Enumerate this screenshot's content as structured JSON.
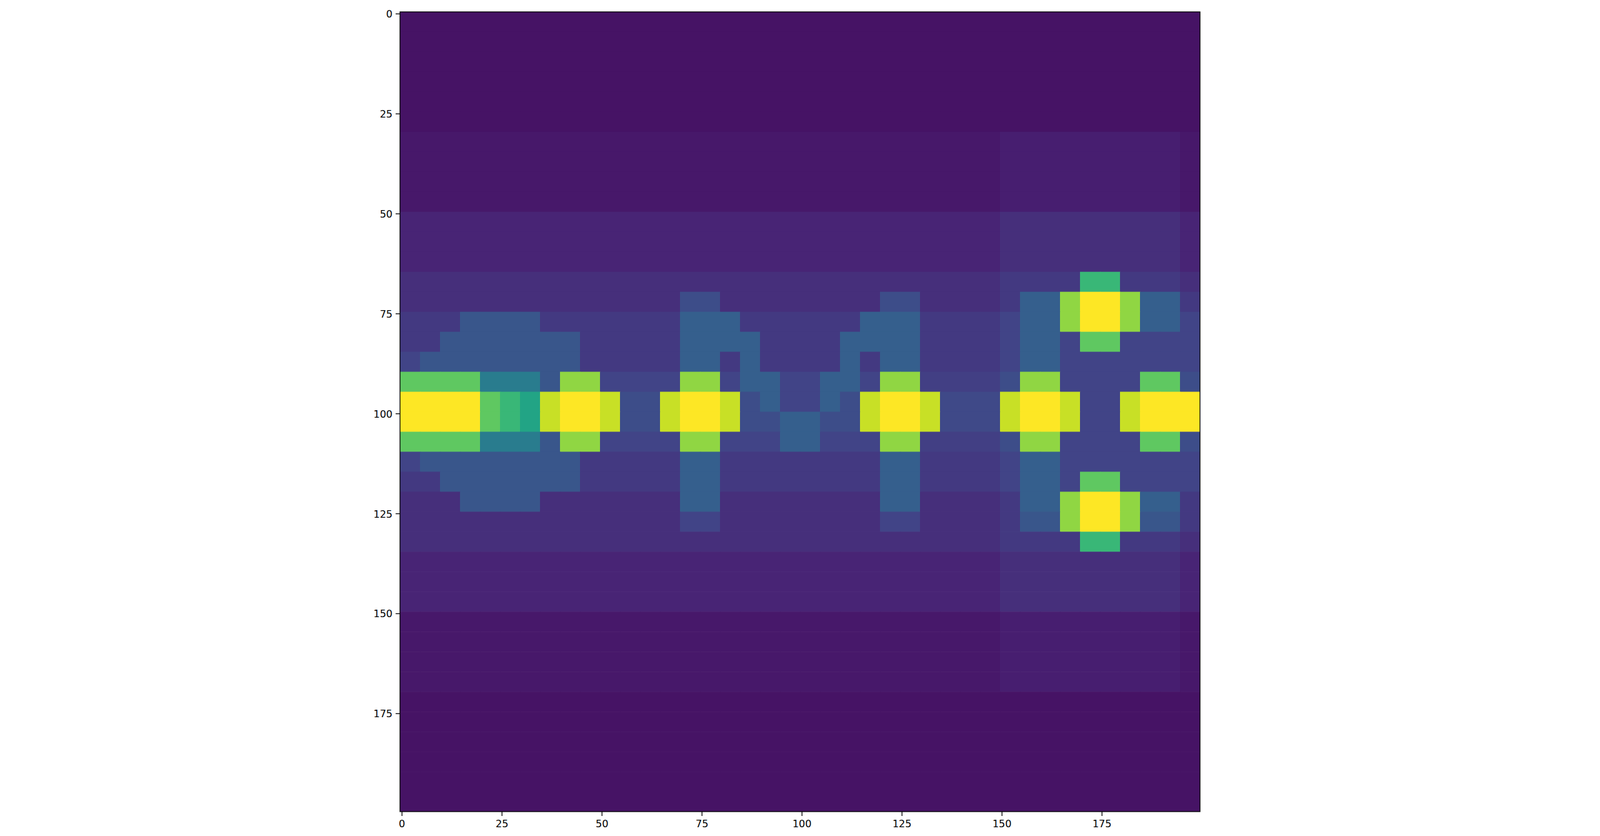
{
  "chart_data": {
    "type": "heatmap",
    "color": "viridis",
    "xlim": [
      -0.5,
      199.5
    ],
    "ylim": [
      199.5,
      -0.5
    ],
    "xticks": [
      0,
      25,
      50,
      75,
      100,
      125,
      150,
      175
    ],
    "yticks": [
      0,
      25,
      50,
      75,
      100,
      125,
      150,
      175
    ],
    "clim": [
      0,
      60
    ],
    "cells": [
      [
        3,
        3,
        3,
        3,
        3,
        3,
        3,
        3,
        3,
        3,
        3,
        3,
        3,
        3,
        3,
        3,
        3,
        3,
        3,
        3,
        3,
        3,
        3,
        3,
        3,
        3,
        3,
        3,
        3,
        3,
        3,
        3,
        3,
        3,
        3,
        3,
        3,
        3,
        3,
        3
      ],
      [
        3,
        3,
        3,
        3,
        3,
        3,
        3,
        3,
        3,
        3,
        3,
        3,
        3,
        3,
        3,
        3,
        3,
        3,
        3,
        3,
        3,
        3,
        3,
        3,
        3,
        3,
        3,
        3,
        3,
        3,
        3,
        3,
        3,
        3,
        3,
        3,
        3,
        3,
        3,
        3
      ],
      [
        3,
        3,
        3,
        3,
        3,
        3,
        3,
        3,
        3,
        3,
        3,
        3,
        3,
        3,
        3,
        3,
        3,
        3,
        3,
        3,
        3,
        3,
        3,
        3,
        3,
        3,
        3,
        3,
        3,
        3,
        3,
        3,
        3,
        3,
        3,
        3,
        3,
        3,
        3,
        3
      ],
      [
        3,
        3,
        3,
        3,
        3,
        3,
        3,
        3,
        3,
        3,
        3,
        3,
        3,
        3,
        3,
        3,
        3,
        3,
        3,
        3,
        3,
        3,
        3,
        3,
        3,
        3,
        3,
        3,
        3,
        3,
        3,
        3,
        3,
        3,
        3,
        3,
        3,
        3,
        3,
        3
      ],
      [
        3,
        3,
        3,
        3,
        3,
        3,
        3,
        3,
        3,
        3,
        3,
        3,
        3,
        3,
        3,
        3,
        3,
        3,
        3,
        3,
        3,
        3,
        3,
        3,
        3,
        3,
        3,
        3,
        3,
        3,
        3,
        3,
        3,
        3,
        3,
        3,
        3,
        3,
        3,
        3
      ],
      [
        3,
        3,
        3,
        3,
        3,
        3,
        3,
        3,
        3,
        3,
        3,
        3,
        3,
        3,
        3,
        3,
        3,
        3,
        3,
        3,
        3,
        3,
        3,
        3,
        3,
        3,
        3,
        3,
        3,
        3,
        3,
        3,
        3,
        3,
        3,
        3,
        3,
        3,
        3,
        3
      ],
      [
        4,
        4,
        4,
        4,
        4,
        4,
        4,
        4,
        4,
        4,
        4,
        4,
        4,
        4,
        4,
        4,
        4,
        4,
        4,
        4,
        4,
        4,
        4,
        4,
        4,
        4,
        4,
        4,
        4,
        4,
        5,
        5,
        5,
        5,
        5,
        5,
        5,
        5,
        5,
        4
      ],
      [
        4,
        4,
        4,
        4,
        4,
        4,
        4,
        4,
        4,
        4,
        4,
        4,
        4,
        4,
        4,
        4,
        4,
        4,
        4,
        4,
        4,
        4,
        4,
        4,
        4,
        4,
        4,
        4,
        4,
        4,
        5,
        5,
        5,
        5,
        5,
        5,
        5,
        5,
        5,
        4
      ],
      [
        4,
        4,
        4,
        4,
        4,
        4,
        4,
        4,
        4,
        4,
        4,
        4,
        4,
        4,
        4,
        4,
        4,
        4,
        4,
        4,
        4,
        4,
        4,
        4,
        4,
        4,
        4,
        4,
        4,
        4,
        5,
        5,
        5,
        5,
        5,
        5,
        5,
        5,
        5,
        4
      ],
      [
        4,
        4,
        4,
        4,
        4,
        4,
        4,
        4,
        4,
        4,
        4,
        4,
        4,
        4,
        4,
        4,
        4,
        4,
        4,
        4,
        4,
        4,
        4,
        4,
        4,
        4,
        4,
        4,
        4,
        4,
        5,
        5,
        5,
        5,
        5,
        5,
        5,
        5,
        5,
        4
      ],
      [
        6,
        6,
        6,
        6,
        6,
        6,
        6,
        6,
        6,
        6,
        6,
        6,
        6,
        6,
        6,
        6,
        6,
        6,
        6,
        6,
        6,
        6,
        6,
        6,
        6,
        6,
        6,
        6,
        6,
        6,
        8,
        8,
        8,
        8,
        8,
        8,
        8,
        8,
        8,
        6
      ],
      [
        6,
        6,
        6,
        6,
        6,
        6,
        6,
        6,
        6,
        6,
        6,
        6,
        6,
        6,
        6,
        6,
        6,
        6,
        6,
        6,
        6,
        6,
        6,
        6,
        6,
        6,
        6,
        6,
        6,
        6,
        8,
        8,
        8,
        8,
        8,
        8,
        8,
        8,
        8,
        6
      ],
      [
        6,
        6,
        6,
        6,
        6,
        6,
        6,
        6,
        6,
        6,
        6,
        6,
        6,
        6,
        6,
        6,
        6,
        6,
        6,
        6,
        6,
        6,
        6,
        6,
        6,
        6,
        6,
        6,
        6,
        6,
        8,
        8,
        8,
        8,
        8,
        8,
        8,
        8,
        8,
        6
      ],
      [
        8,
        8,
        8,
        8,
        8,
        8,
        8,
        8,
        8,
        8,
        8,
        8,
        8,
        8,
        8,
        8,
        8,
        8,
        8,
        8,
        8,
        8,
        8,
        8,
        8,
        8,
        8,
        8,
        8,
        8,
        10,
        10,
        10,
        10,
        40,
        40,
        10,
        10,
        10,
        8
      ],
      [
        8,
        8,
        8,
        8,
        8,
        8,
        8,
        8,
        8,
        8,
        8,
        8,
        8,
        8,
        14,
        14,
        8,
        8,
        8,
        8,
        8,
        8,
        8,
        8,
        14,
        14,
        8,
        8,
        8,
        8,
        10,
        18,
        18,
        50,
        100,
        100,
        50,
        18,
        18,
        10
      ],
      [
        10,
        10,
        10,
        16,
        16,
        16,
        16,
        10,
        10,
        10,
        10,
        10,
        10,
        10,
        18,
        18,
        18,
        10,
        10,
        10,
        10,
        10,
        10,
        18,
        18,
        18,
        10,
        10,
        10,
        10,
        12,
        18,
        18,
        50,
        100,
        100,
        50,
        18,
        18,
        12
      ],
      [
        10,
        10,
        16,
        16,
        16,
        16,
        16,
        16,
        16,
        10,
        10,
        10,
        10,
        10,
        18,
        18,
        18,
        18,
        10,
        10,
        10,
        10,
        18,
        18,
        18,
        18,
        10,
        10,
        10,
        10,
        12,
        18,
        18,
        12,
        45,
        45,
        12,
        12,
        12,
        12
      ],
      [
        12,
        16,
        16,
        16,
        16,
        16,
        16,
        16,
        16,
        10,
        10,
        10,
        10,
        10,
        18,
        18,
        10,
        18,
        10,
        10,
        10,
        10,
        18,
        10,
        18,
        18,
        10,
        10,
        10,
        10,
        12,
        18,
        18,
        12,
        12,
        12,
        12,
        12,
        12,
        12
      ],
      [
        45,
        45,
        45,
        45,
        25,
        25,
        25,
        16,
        50,
        50,
        12,
        12,
        12,
        12,
        50,
        50,
        12,
        18,
        18,
        12,
        12,
        18,
        18,
        12,
        50,
        50,
        11,
        11,
        11,
        11,
        14,
        50,
        50,
        12,
        12,
        12,
        12,
        45,
        45,
        14
      ],
      [
        100,
        100,
        100,
        100,
        45,
        40,
        35,
        55,
        100,
        100,
        55,
        14,
        14,
        55,
        100,
        100,
        55,
        14,
        18,
        12,
        12,
        18,
        14,
        55,
        100,
        100,
        55,
        13,
        13,
        13,
        55,
        100,
        100,
        55,
        12,
        12,
        55,
        100,
        100,
        60
      ],
      [
        100,
        100,
        100,
        100,
        45,
        40,
        35,
        55,
        100,
        100,
        55,
        14,
        14,
        55,
        100,
        100,
        55,
        14,
        14,
        18,
        18,
        14,
        14,
        55,
        100,
        100,
        55,
        13,
        13,
        13,
        55,
        100,
        100,
        55,
        12,
        12,
        55,
        100,
        100,
        60
      ],
      [
        45,
        45,
        45,
        45,
        25,
        25,
        25,
        16,
        50,
        50,
        12,
        12,
        12,
        12,
        50,
        50,
        12,
        12,
        12,
        18,
        18,
        12,
        12,
        12,
        50,
        50,
        11,
        11,
        11,
        11,
        14,
        50,
        50,
        12,
        12,
        12,
        12,
        45,
        45,
        14
      ],
      [
        12,
        16,
        16,
        16,
        16,
        16,
        16,
        16,
        16,
        10,
        10,
        10,
        10,
        10,
        18,
        18,
        10,
        10,
        10,
        10,
        10,
        10,
        10,
        10,
        18,
        18,
        10,
        10,
        10,
        10,
        12,
        18,
        18,
        12,
        12,
        12,
        12,
        12,
        12,
        12
      ],
      [
        10,
        10,
        16,
        16,
        16,
        16,
        16,
        16,
        16,
        10,
        10,
        10,
        10,
        10,
        18,
        18,
        10,
        10,
        10,
        10,
        10,
        10,
        10,
        10,
        18,
        18,
        10,
        10,
        10,
        10,
        12,
        18,
        18,
        12,
        45,
        45,
        12,
        12,
        12,
        12
      ],
      [
        8,
        8,
        8,
        16,
        16,
        16,
        16,
        8,
        8,
        8,
        8,
        8,
        8,
        8,
        18,
        18,
        8,
        8,
        8,
        8,
        8,
        8,
        8,
        8,
        18,
        18,
        8,
        8,
        8,
        8,
        10,
        18,
        18,
        50,
        100,
        100,
        50,
        18,
        18,
        10
      ],
      [
        8,
        8,
        8,
        8,
        8,
        8,
        8,
        8,
        8,
        8,
        8,
        8,
        8,
        8,
        12,
        12,
        8,
        8,
        8,
        8,
        8,
        8,
        8,
        8,
        12,
        12,
        8,
        8,
        8,
        8,
        10,
        16,
        16,
        50,
        100,
        100,
        50,
        16,
        16,
        10
      ],
      [
        8,
        8,
        8,
        8,
        8,
        8,
        8,
        8,
        8,
        8,
        8,
        8,
        8,
        8,
        8,
        8,
        8,
        8,
        8,
        8,
        8,
        8,
        8,
        8,
        8,
        8,
        8,
        8,
        8,
        8,
        10,
        10,
        10,
        10,
        40,
        40,
        10,
        10,
        10,
        8
      ],
      [
        6,
        6,
        6,
        6,
        6,
        6,
        6,
        6,
        6,
        6,
        6,
        6,
        6,
        6,
        6,
        6,
        6,
        6,
        6,
        6,
        6,
        6,
        6,
        6,
        6,
        6,
        6,
        6,
        6,
        6,
        8,
        8,
        8,
        8,
        8,
        8,
        8,
        8,
        8,
        6
      ],
      [
        6,
        6,
        6,
        6,
        6,
        6,
        6,
        6,
        6,
        6,
        6,
        6,
        6,
        6,
        6,
        6,
        6,
        6,
        6,
        6,
        6,
        6,
        6,
        6,
        6,
        6,
        6,
        6,
        6,
        6,
        8,
        8,
        8,
        8,
        8,
        8,
        8,
        8,
        8,
        6
      ],
      [
        6,
        6,
        6,
        6,
        6,
        6,
        6,
        6,
        6,
        6,
        6,
        6,
        6,
        6,
        6,
        6,
        6,
        6,
        6,
        6,
        6,
        6,
        6,
        6,
        6,
        6,
        6,
        6,
        6,
        6,
        8,
        8,
        8,
        8,
        8,
        8,
        8,
        8,
        8,
        6
      ],
      [
        4,
        4,
        4,
        4,
        4,
        4,
        4,
        4,
        4,
        4,
        4,
        4,
        4,
        4,
        4,
        4,
        4,
        4,
        4,
        4,
        4,
        4,
        4,
        4,
        4,
        4,
        4,
        4,
        4,
        4,
        5,
        5,
        5,
        5,
        5,
        5,
        5,
        5,
        5,
        4
      ],
      [
        4,
        4,
        4,
        4,
        4,
        4,
        4,
        4,
        4,
        4,
        4,
        4,
        4,
        4,
        4,
        4,
        4,
        4,
        4,
        4,
        4,
        4,
        4,
        4,
        4,
        4,
        4,
        4,
        4,
        4,
        5,
        5,
        5,
        5,
        5,
        5,
        5,
        5,
        5,
        4
      ],
      [
        4,
        4,
        4,
        4,
        4,
        4,
        4,
        4,
        4,
        4,
        4,
        4,
        4,
        4,
        4,
        4,
        4,
        4,
        4,
        4,
        4,
        4,
        4,
        4,
        4,
        4,
        4,
        4,
        4,
        4,
        5,
        5,
        5,
        5,
        5,
        5,
        5,
        5,
        5,
        4
      ],
      [
        4,
        4,
        4,
        4,
        4,
        4,
        4,
        4,
        4,
        4,
        4,
        4,
        4,
        4,
        4,
        4,
        4,
        4,
        4,
        4,
        4,
        4,
        4,
        4,
        4,
        4,
        4,
        4,
        4,
        4,
        5,
        5,
        5,
        5,
        5,
        5,
        5,
        5,
        5,
        4
      ],
      [
        3,
        3,
        3,
        3,
        3,
        3,
        3,
        3,
        3,
        3,
        3,
        3,
        3,
        3,
        3,
        3,
        3,
        3,
        3,
        3,
        3,
        3,
        3,
        3,
        3,
        3,
        3,
        3,
        3,
        3,
        3,
        3,
        3,
        3,
        3,
        3,
        3,
        3,
        3,
        3
      ],
      [
        3,
        3,
        3,
        3,
        3,
        3,
        3,
        3,
        3,
        3,
        3,
        3,
        3,
        3,
        3,
        3,
        3,
        3,
        3,
        3,
        3,
        3,
        3,
        3,
        3,
        3,
        3,
        3,
        3,
        3,
        3,
        3,
        3,
        3,
        3,
        3,
        3,
        3,
        3,
        3
      ],
      [
        3,
        3,
        3,
        3,
        3,
        3,
        3,
        3,
        3,
        3,
        3,
        3,
        3,
        3,
        3,
        3,
        3,
        3,
        3,
        3,
        3,
        3,
        3,
        3,
        3,
        3,
        3,
        3,
        3,
        3,
        3,
        3,
        3,
        3,
        3,
        3,
        3,
        3,
        3,
        3
      ],
      [
        3,
        3,
        3,
        3,
        3,
        3,
        3,
        3,
        3,
        3,
        3,
        3,
        3,
        3,
        3,
        3,
        3,
        3,
        3,
        3,
        3,
        3,
        3,
        3,
        3,
        3,
        3,
        3,
        3,
        3,
        3,
        3,
        3,
        3,
        3,
        3,
        3,
        3,
        3,
        3
      ],
      [
        3,
        3,
        3,
        3,
        3,
        3,
        3,
        3,
        3,
        3,
        3,
        3,
        3,
        3,
        3,
        3,
        3,
        3,
        3,
        3,
        3,
        3,
        3,
        3,
        3,
        3,
        3,
        3,
        3,
        3,
        3,
        3,
        3,
        3,
        3,
        3,
        3,
        3,
        3,
        3
      ],
      [
        3,
        3,
        3,
        3,
        3,
        3,
        3,
        3,
        3,
        3,
        3,
        3,
        3,
        3,
        3,
        3,
        3,
        3,
        3,
        3,
        3,
        3,
        3,
        3,
        3,
        3,
        3,
        3,
        3,
        3,
        3,
        3,
        3,
        3,
        3,
        3,
        3,
        3,
        3,
        3
      ]
    ]
  }
}
